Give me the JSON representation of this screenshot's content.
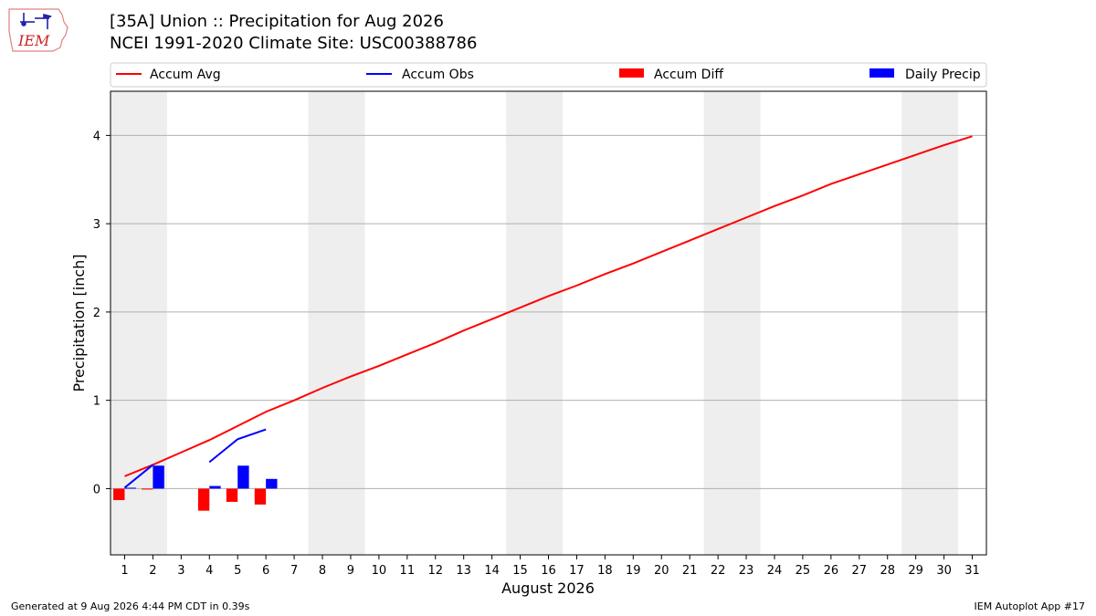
{
  "header": {
    "logo_text": "IEM",
    "title": "[35A] Union :: Precipitation for Aug 2026",
    "subtitle": "NCEI 1991-2020 Climate Site: USC00388786"
  },
  "footer": {
    "generated": "Generated at 9 Aug 2026 4:44 PM CDT in 0.39s",
    "app": "IEM Autoplot App #17"
  },
  "colors": {
    "accum_avg": "#ff0000",
    "accum_obs": "#0000ff",
    "accum_diff": "#ff0000",
    "daily_precip": "#0000ff",
    "weekend_band": "#eeeeee",
    "grid": "#b0b0b0"
  },
  "chart_data": {
    "type": "bar",
    "title": "[35A] Union :: Precipitation for Aug 2026",
    "xlabel": "August 2026",
    "ylabel": "Precipitation [inch]",
    "xlim": [
      0.5,
      31.5
    ],
    "ylim": [
      -0.75,
      4.5
    ],
    "yticks": [
      0,
      1,
      2,
      3,
      4
    ],
    "xticks": [
      1,
      2,
      3,
      4,
      5,
      6,
      7,
      8,
      9,
      10,
      11,
      12,
      13,
      14,
      15,
      16,
      17,
      18,
      19,
      20,
      21,
      22,
      23,
      24,
      25,
      26,
      27,
      28,
      29,
      30,
      31
    ],
    "grid": "horizontal",
    "legend": [
      "Accum Avg",
      "Accum Obs",
      "Accum Diff",
      "Daily Precip"
    ],
    "legend_placement": "top",
    "weekends": [
      [
        1,
        2
      ],
      [
        8,
        9
      ],
      [
        15,
        16
      ],
      [
        22,
        23
      ],
      [
        29,
        30
      ]
    ],
    "accum_avg": {
      "name": "Accum Avg",
      "x": [
        1,
        2,
        3,
        4,
        5,
        6,
        7,
        8,
        9,
        10,
        11,
        12,
        13,
        14,
        15,
        16,
        17,
        18,
        19,
        20,
        21,
        22,
        23,
        24,
        25,
        26,
        27,
        28,
        29,
        30,
        31
      ],
      "values": [
        0.14,
        0.27,
        0.41,
        0.55,
        0.71,
        0.87,
        1.0,
        1.14,
        1.27,
        1.39,
        1.52,
        1.65,
        1.79,
        1.92,
        2.05,
        2.18,
        2.3,
        2.43,
        2.55,
        2.68,
        2.81,
        2.94,
        3.07,
        3.2,
        3.32,
        3.45,
        3.56,
        3.67,
        3.78,
        3.89,
        3.99
      ]
    },
    "accum_obs": {
      "name": "Accum Obs",
      "segments": [
        {
          "x": [
            1,
            2
          ],
          "values": [
            0.01,
            0.27
          ]
        },
        {
          "x": [
            4,
            5,
            6
          ],
          "values": [
            0.3,
            0.56,
            0.67
          ]
        }
      ]
    },
    "accum_diff": {
      "name": "Accum Diff",
      "x": [
        1,
        2,
        4,
        5,
        6
      ],
      "values": [
        -0.13,
        -0.01,
        -0.25,
        -0.15,
        -0.18
      ]
    },
    "daily_precip": {
      "name": "Daily Precip",
      "x": [
        1,
        2,
        4,
        5,
        6
      ],
      "values": [
        0.01,
        0.26,
        0.03,
        0.26,
        0.11
      ]
    }
  }
}
